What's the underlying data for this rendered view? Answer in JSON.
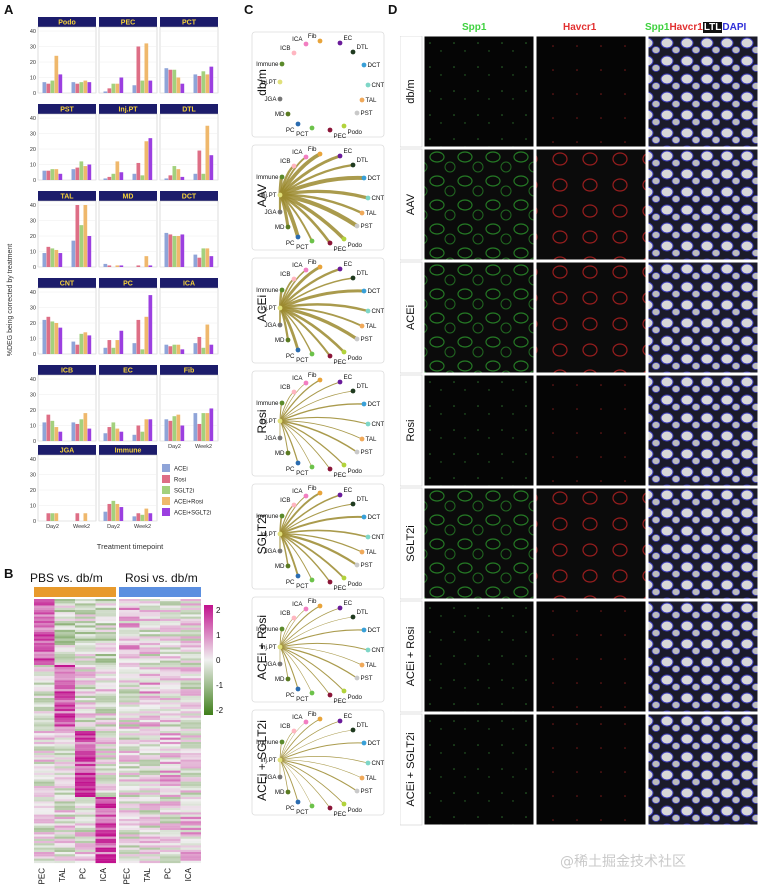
{
  "panels": {
    "a": "A",
    "b": "B",
    "c": "C",
    "d": "D"
  },
  "panel_a": {
    "ylabel": "%DEG being corrected by treatment",
    "xlabel": "Treatment timepoint",
    "x_ticks": [
      "Day2",
      "Week2"
    ],
    "y_ticks": [
      "0",
      "10",
      "20",
      "30",
      "40"
    ],
    "legend": [
      "ACEi",
      "Rosi",
      "SGLT2i",
      "ACEi+Rosi",
      "ACEi+SGLT2i"
    ],
    "colors": [
      "#8fa4d8",
      "#de6e86",
      "#a3d17d",
      "#efb86c",
      "#9b3fe0"
    ]
  },
  "chart_data": {
    "type": "bar",
    "ylim": [
      0,
      40
    ],
    "x": [
      "Day2",
      "Week2"
    ],
    "series_names": [
      "ACEi",
      "Rosi",
      "SGLT2i",
      "ACEi+Rosi",
      "ACEi+SGLT2i"
    ],
    "facets": [
      {
        "name": "Podo",
        "values": [
          [
            7,
            6,
            8,
            24,
            12
          ],
          [
            7,
            6,
            7,
            8,
            7
          ]
        ]
      },
      {
        "name": "PEC",
        "values": [
          [
            1,
            3,
            6,
            6,
            10
          ],
          [
            5,
            30,
            8,
            32,
            8
          ]
        ]
      },
      {
        "name": "PCT",
        "values": [
          [
            16,
            15,
            15,
            10,
            6
          ],
          [
            12,
            11,
            14,
            12,
            17
          ]
        ]
      },
      {
        "name": "PST",
        "values": [
          [
            6,
            6,
            7,
            7,
            4
          ],
          [
            7,
            8,
            12,
            9,
            10
          ]
        ]
      },
      {
        "name": "Inj.PT",
        "values": [
          [
            1,
            2,
            4,
            12,
            5
          ],
          [
            4,
            11,
            3,
            25,
            27
          ]
        ]
      },
      {
        "name": "DTL",
        "values": [
          [
            1,
            3,
            9,
            7,
            2
          ],
          [
            4,
            19,
            4,
            35,
            16
          ]
        ]
      },
      {
        "name": "TAL",
        "values": [
          [
            9,
            13,
            12,
            11,
            9
          ],
          [
            17,
            40,
            27,
            40,
            20
          ]
        ]
      },
      {
        "name": "MD",
        "values": [
          [
            2,
            1,
            0,
            1,
            1
          ],
          [
            0,
            1,
            0,
            7,
            1
          ]
        ]
      },
      {
        "name": "DCT",
        "values": [
          [
            22,
            21,
            20,
            20,
            21
          ],
          [
            8,
            6,
            12,
            12,
            7
          ]
        ]
      },
      {
        "name": "CNT",
        "values": [
          [
            22,
            24,
            21,
            20,
            17
          ],
          [
            8,
            6,
            13,
            14,
            12
          ]
        ]
      },
      {
        "name": "PC",
        "values": [
          [
            4,
            9,
            4,
            9,
            15
          ],
          [
            7,
            22,
            3,
            24,
            38
          ]
        ]
      },
      {
        "name": "ICA",
        "values": [
          [
            6,
            5,
            6,
            6,
            3
          ],
          [
            7,
            11,
            4,
            19,
            6
          ]
        ]
      },
      {
        "name": "ICB",
        "values": [
          [
            12,
            17,
            13,
            9,
            6
          ],
          [
            12,
            11,
            14,
            18,
            8
          ]
        ]
      },
      {
        "name": "EC",
        "values": [
          [
            5,
            9,
            12,
            8,
            6
          ],
          [
            4,
            10,
            6,
            14,
            14
          ]
        ]
      },
      {
        "name": "Fib",
        "values": [
          [
            14,
            13,
            16,
            17,
            10
          ],
          [
            18,
            11,
            18,
            18,
            21
          ]
        ]
      },
      {
        "name": "JGA",
        "values": [
          [
            0,
            5,
            5,
            5,
            0
          ],
          [
            0,
            5,
            0,
            5,
            0
          ]
        ]
      },
      {
        "name": "Immune",
        "values": [
          [
            6,
            11,
            13,
            11,
            9
          ],
          [
            3,
            5,
            4,
            8,
            5
          ]
        ]
      }
    ]
  },
  "panel_b": {
    "title_left": "PBS vs. db/m",
    "title_right": "Rosi vs. db/m",
    "xlabels_left": [
      "PEC",
      "TAL",
      "PC",
      "ICA"
    ],
    "xlabels_right": [
      "PEC",
      "TAL",
      "PC",
      "ICA"
    ],
    "colorbar_ticks": [
      "2",
      "1",
      "0",
      "-1",
      "-2"
    ],
    "bar_left_color": "#e89a2c",
    "bar_right_color": "#5b8fe0"
  },
  "panel_c": {
    "conditions": [
      "db/m",
      "AAV",
      "ACEi",
      "Rosi",
      "SGLT2i",
      "ACEi + Rosi",
      "ACEi + SGLT2i"
    ],
    "nodes": [
      "ICA",
      "Fib",
      "EC",
      "DTL",
      "DCT",
      "CNT",
      "TAL",
      "PST",
      "Podo",
      "PEC",
      "PCT",
      "PC",
      "MD",
      "JGA",
      "Inj.PT",
      "Immune",
      "ICB"
    ],
    "node_colors": [
      "#f27ec1",
      "#e8a43a",
      "#6a1b9a",
      "#1f3a1f",
      "#39a0d8",
      "#7ed6c7",
      "#f0a95a",
      "#c9c9c9",
      "#b2d33b",
      "#8b1538",
      "#6cc24a",
      "#2b6cb0",
      "#5a7a22",
      "#777777",
      "#e0e07a",
      "#5b8a2b",
      "#ffb6c1"
    ]
  },
  "panel_d": {
    "col_spp1": "Spp1",
    "col_havcr1": "Havcr1",
    "merge_spp1": "Spp1",
    "merge_havcr1": "Havcr1",
    "merge_ltl": "LTL",
    "merge_dapi": "DAPI",
    "rows": [
      "db/m",
      "AAV",
      "ACEi",
      "Rosi",
      "SGLT2i",
      "ACEi + Rosi",
      "ACEi + SGLT2i"
    ]
  },
  "watermark": "@稀土掘金技术社区"
}
